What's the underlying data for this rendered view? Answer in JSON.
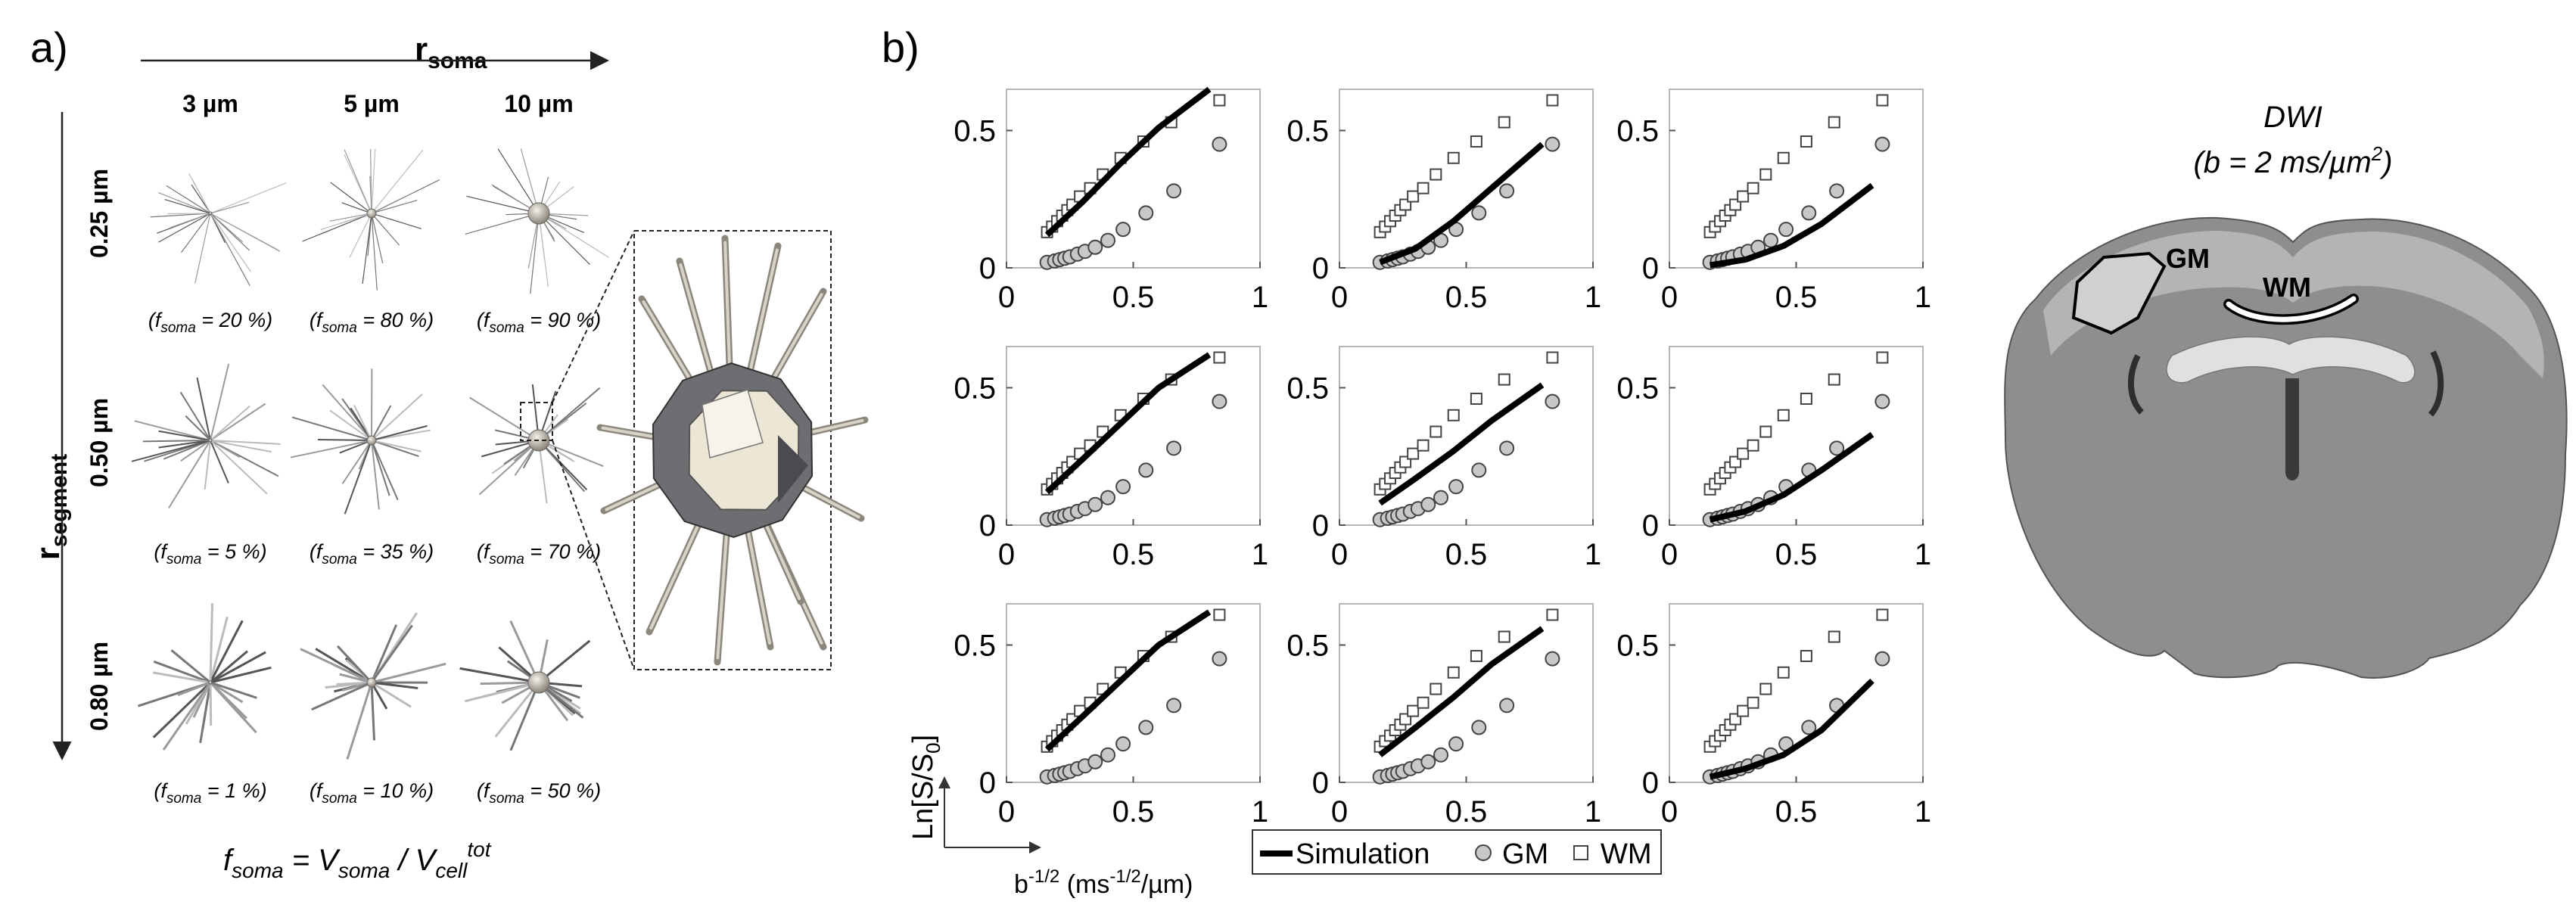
{
  "panel_a": {
    "letter": "a)",
    "x_axis_label": "r",
    "x_axis_sub": "soma",
    "y_axis_label": "r",
    "y_axis_sub": "segment",
    "columns": [
      "3 µm",
      "5 µm",
      "10 µm"
    ],
    "rows": [
      "0.25 µm",
      "0.50 µm",
      "0.80 µm"
    ],
    "fsoma_labels": [
      [
        "20 %",
        "80 %",
        "90 %"
      ],
      [
        "5 %",
        "35 %",
        "70 %"
      ],
      [
        "1 %",
        "10 %",
        "50 %"
      ]
    ],
    "fsoma_values": [
      [
        20,
        80,
        90
      ],
      [
        5,
        35,
        70
      ],
      [
        1,
        10,
        50
      ]
    ],
    "formula": {
      "f": "f",
      "f_sub": "soma",
      "eq": " = V",
      "v_sub": "soma",
      "slash": " / V",
      "cell_sub": "cell",
      "tot_sup": "tot"
    }
  },
  "panel_b": {
    "letter": "b)",
    "xlabel": "b",
    "xlabel_sup": "-1/2",
    "xlabel_unit": " (ms",
    "xlabel_unit_sup": "-1/2",
    "xlabel_unit_end": "/µm)",
    "ylabel": "Ln[S/S",
    "ylabel_sub": "0",
    "ylabel_end": "]",
    "x_ticks": [
      "0",
      "0.5",
      "1"
    ],
    "y_ticks": [
      "0",
      "0.5"
    ],
    "legend": {
      "simulation": "Simulation",
      "gm": "GM",
      "wm": "WM"
    }
  },
  "dwi": {
    "title": "DWI",
    "subtitle_pre": "(b = 2 ms/µm",
    "subtitle_sup": "2",
    "subtitle_post": ")",
    "gm_label": "GM",
    "wm_label": "WM"
  },
  "chart_data": {
    "type": "line",
    "grid": "3x3",
    "xlim": [
      0,
      1
    ],
    "ylim": [
      0,
      0.65
    ],
    "series_styles": {
      "Simulation": "black thick line",
      "GM": "gray circles",
      "WM": "white squares"
    },
    "gm_x": [
      0.16,
      0.19,
      0.21,
      0.23,
      0.25,
      0.28,
      0.31,
      0.35,
      0.4,
      0.46,
      0.55,
      0.66,
      0.84
    ],
    "gm_y": [
      0.02,
      0.025,
      0.03,
      0.035,
      0.04,
      0.05,
      0.06,
      0.075,
      0.1,
      0.14,
      0.2,
      0.28,
      0.45
    ],
    "wm_x": [
      0.16,
      0.18,
      0.2,
      0.22,
      0.24,
      0.26,
      0.29,
      0.33,
      0.38,
      0.45,
      0.54,
      0.65,
      0.84
    ],
    "wm_y": [
      0.13,
      0.15,
      0.17,
      0.19,
      0.21,
      0.23,
      0.26,
      0.29,
      0.34,
      0.4,
      0.46,
      0.53,
      0.61
    ],
    "simulations": [
      {
        "x": [
          0.16,
          0.3,
          0.45,
          0.6,
          0.8
        ],
        "y": [
          0.12,
          0.24,
          0.38,
          0.51,
          0.65
        ]
      },
      {
        "x": [
          0.16,
          0.3,
          0.45,
          0.6,
          0.8
        ],
        "y": [
          0.02,
          0.07,
          0.17,
          0.29,
          0.45
        ]
      },
      {
        "x": [
          0.16,
          0.3,
          0.45,
          0.6,
          0.8
        ],
        "y": [
          0.01,
          0.03,
          0.08,
          0.16,
          0.3
        ]
      },
      {
        "x": [
          0.16,
          0.3,
          0.45,
          0.6,
          0.8
        ],
        "y": [
          0.12,
          0.24,
          0.37,
          0.5,
          0.62
        ]
      },
      {
        "x": [
          0.16,
          0.3,
          0.45,
          0.6,
          0.8
        ],
        "y": [
          0.08,
          0.17,
          0.27,
          0.38,
          0.51
        ]
      },
      {
        "x": [
          0.16,
          0.3,
          0.45,
          0.6,
          0.8
        ],
        "y": [
          0.02,
          0.05,
          0.11,
          0.2,
          0.33
        ]
      },
      {
        "x": [
          0.16,
          0.3,
          0.45,
          0.6,
          0.8
        ],
        "y": [
          0.12,
          0.24,
          0.37,
          0.5,
          0.62
        ]
      },
      {
        "x": [
          0.16,
          0.3,
          0.45,
          0.6,
          0.8
        ],
        "y": [
          0.1,
          0.2,
          0.31,
          0.43,
          0.56
        ]
      },
      {
        "x": [
          0.16,
          0.3,
          0.45,
          0.6,
          0.8
        ],
        "y": [
          0.02,
          0.05,
          0.1,
          0.19,
          0.37
        ]
      }
    ]
  }
}
